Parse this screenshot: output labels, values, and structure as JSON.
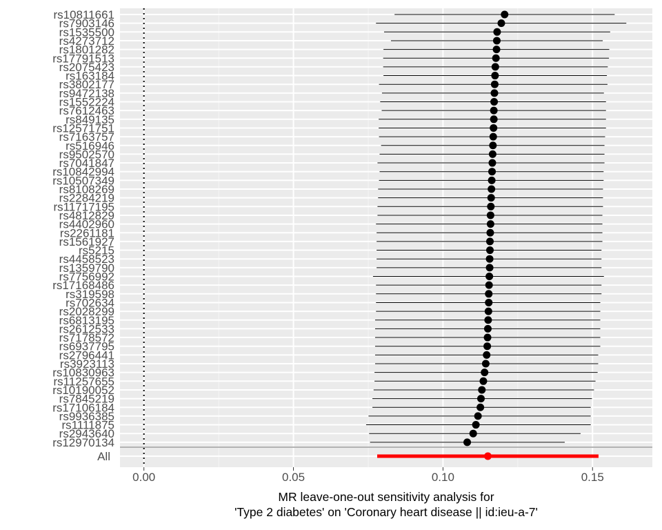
{
  "chart_data": {
    "type": "forest",
    "xlabel_lines": [
      "MR leave-one-out sensitivity analysis for",
      "'Type 2 diabetes' on 'Coronary heart disease || id:ieu-a-7'"
    ],
    "ylabel": "",
    "xlim": [
      -0.008,
      0.17
    ],
    "xticks": [
      0.0,
      0.05,
      0.1,
      0.15
    ],
    "xtick_labels": [
      "0.00",
      "0.05",
      "0.10",
      "0.15"
    ],
    "reference_line": 0,
    "grid": true,
    "panel_background": "#ebebeb",
    "point_color": "#000000",
    "summary_color": "#ff0000",
    "snps": [
      {
        "label": "rs10811661",
        "b": 0.1206,
        "lo": 0.0838,
        "hi": 0.1574
      },
      {
        "label": "rs7903146",
        "b": 0.1195,
        "lo": 0.0776,
        "hi": 0.1613
      },
      {
        "label": "rs1535500",
        "b": 0.1181,
        "lo": 0.0803,
        "hi": 0.1559
      },
      {
        "label": "rs4273712",
        "b": 0.118,
        "lo": 0.0826,
        "hi": 0.1534
      },
      {
        "label": "rs1801282",
        "b": 0.1179,
        "lo": 0.0801,
        "hi": 0.1556
      },
      {
        "label": "rs17791513",
        "b": 0.1177,
        "lo": 0.08,
        "hi": 0.1555
      },
      {
        "label": "rs2075423",
        "b": 0.1175,
        "lo": 0.08,
        "hi": 0.1551
      },
      {
        "label": "rs163184",
        "b": 0.1174,
        "lo": 0.0801,
        "hi": 0.1548
      },
      {
        "label": "rs3802177",
        "b": 0.1173,
        "lo": 0.0786,
        "hi": 0.155
      },
      {
        "label": "rs9472138",
        "b": 0.1172,
        "lo": 0.0796,
        "hi": 0.1538
      },
      {
        "label": "rs1552224",
        "b": 0.1171,
        "lo": 0.079,
        "hi": 0.1545
      },
      {
        "label": "rs7612463",
        "b": 0.117,
        "lo": 0.0795,
        "hi": 0.1545
      },
      {
        "label": "rs849135",
        "b": 0.117,
        "lo": 0.0785,
        "hi": 0.1545
      },
      {
        "label": "rs12571751",
        "b": 0.1169,
        "lo": 0.0785,
        "hi": 0.1545
      },
      {
        "label": "rs7163757",
        "b": 0.1168,
        "lo": 0.0786,
        "hi": 0.1542
      },
      {
        "label": "rs516946",
        "b": 0.1167,
        "lo": 0.0793,
        "hi": 0.154
      },
      {
        "label": "rs9502570",
        "b": 0.1166,
        "lo": 0.0788,
        "hi": 0.154
      },
      {
        "label": "rs7041847",
        "b": 0.1165,
        "lo": 0.0781,
        "hi": 0.154
      },
      {
        "label": "rs10842994",
        "b": 0.1164,
        "lo": 0.0788,
        "hi": 0.1537
      },
      {
        "label": "rs10507349",
        "b": 0.1163,
        "lo": 0.0786,
        "hi": 0.1537
      },
      {
        "label": "rs8108269",
        "b": 0.1162,
        "lo": 0.0783,
        "hi": 0.1535
      },
      {
        "label": "rs2284219",
        "b": 0.1161,
        "lo": 0.0783,
        "hi": 0.1535
      },
      {
        "label": "rs11717195",
        "b": 0.116,
        "lo": 0.0781,
        "hi": 0.1535
      },
      {
        "label": "rs4812829",
        "b": 0.1159,
        "lo": 0.0781,
        "hi": 0.1533
      },
      {
        "label": "rs4402960",
        "b": 0.1159,
        "lo": 0.0776,
        "hi": 0.1533
      },
      {
        "label": "rs2261181",
        "b": 0.1158,
        "lo": 0.0778,
        "hi": 0.1533
      },
      {
        "label": "rs1561927",
        "b": 0.1157,
        "lo": 0.0778,
        "hi": 0.1533
      },
      {
        "label": "rs5215",
        "b": 0.1157,
        "lo": 0.0778,
        "hi": 0.153
      },
      {
        "label": "rs4458523",
        "b": 0.1156,
        "lo": 0.0778,
        "hi": 0.153
      },
      {
        "label": "rs1359790",
        "b": 0.1156,
        "lo": 0.0778,
        "hi": 0.153
      },
      {
        "label": "rs7756992",
        "b": 0.1155,
        "lo": 0.0766,
        "hi": 0.1538
      },
      {
        "label": "rs17168486",
        "b": 0.1154,
        "lo": 0.0776,
        "hi": 0.153
      },
      {
        "label": "rs319598",
        "b": 0.1153,
        "lo": 0.0776,
        "hi": 0.153
      },
      {
        "label": "rs702634",
        "b": 0.1153,
        "lo": 0.0776,
        "hi": 0.1526
      },
      {
        "label": "rs2028299",
        "b": 0.1152,
        "lo": 0.0776,
        "hi": 0.1526
      },
      {
        "label": "rs6813195",
        "b": 0.1151,
        "lo": 0.0773,
        "hi": 0.1526
      },
      {
        "label": "rs2612533",
        "b": 0.115,
        "lo": 0.0773,
        "hi": 0.1526
      },
      {
        "label": "rs7178572",
        "b": 0.1149,
        "lo": 0.0773,
        "hi": 0.1526
      },
      {
        "label": "rs6937795",
        "b": 0.1148,
        "lo": 0.0773,
        "hi": 0.1526
      },
      {
        "label": "rs2796441",
        "b": 0.1146,
        "lo": 0.0773,
        "hi": 0.1519
      },
      {
        "label": "rs3923113",
        "b": 0.1143,
        "lo": 0.0773,
        "hi": 0.1519
      },
      {
        "label": "rs10830963",
        "b": 0.1139,
        "lo": 0.0771,
        "hi": 0.1517
      },
      {
        "label": "rs11257655",
        "b": 0.1135,
        "lo": 0.0771,
        "hi": 0.151
      },
      {
        "label": "rs10190052",
        "b": 0.113,
        "lo": 0.0768,
        "hi": 0.1505
      },
      {
        "label": "rs7845219",
        "b": 0.1127,
        "lo": 0.0764,
        "hi": 0.1498
      },
      {
        "label": "rs17106184",
        "b": 0.1125,
        "lo": 0.0764,
        "hi": 0.1494
      },
      {
        "label": "rs9936385",
        "b": 0.1117,
        "lo": 0.0751,
        "hi": 0.1494
      },
      {
        "label": "rs1111875",
        "b": 0.111,
        "lo": 0.0743,
        "hi": 0.1494
      },
      {
        "label": "rs2943640",
        "b": 0.1101,
        "lo": 0.0753,
        "hi": 0.146
      },
      {
        "label": "rs12970134",
        "b": 0.1081,
        "lo": 0.0756,
        "hi": 0.1407
      }
    ],
    "summary": {
      "label": "All",
      "b": 0.115,
      "lo": 0.078,
      "hi": 0.152
    }
  }
}
